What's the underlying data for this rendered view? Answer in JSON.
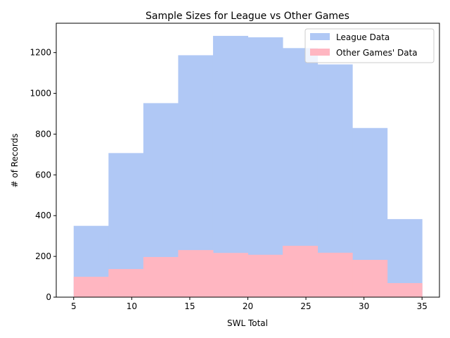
{
  "chart_data": {
    "type": "bar",
    "title": "Sample Sizes for League vs Other Games",
    "xlabel": "SWL Total",
    "ylabel": "# of Records",
    "xlim": [
      3.5,
      36.5
    ],
    "ylim": [
      0,
      1344
    ],
    "xticks": [
      5,
      10,
      15,
      20,
      25,
      30,
      35
    ],
    "yticks": [
      0,
      200,
      400,
      600,
      800,
      1000,
      1200
    ],
    "bin_edges": [
      5,
      8,
      11,
      14,
      17,
      20,
      23,
      26,
      29,
      32,
      35
    ],
    "series": [
      {
        "name": "League Data",
        "color": "#b0c8f5",
        "values": [
          350,
          707,
          952,
          1187,
          1282,
          1275,
          1222,
          1142,
          830,
          383
        ]
      },
      {
        "name": "Other Games' Data",
        "color": "#ffb6c1",
        "values": [
          100,
          138,
          197,
          231,
          217,
          208,
          252,
          218,
          183,
          69
        ]
      }
    ],
    "legend_position": "top-right",
    "grid": false
  }
}
